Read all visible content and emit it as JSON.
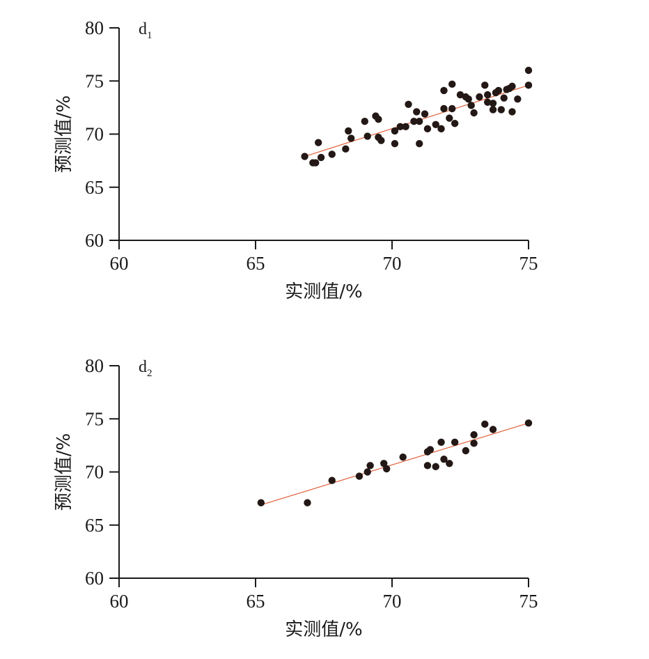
{
  "chart_data": [
    {
      "type": "scatter",
      "panel_label": "d",
      "panel_subscript": "1",
      "xlabel": "实测值/%",
      "ylabel": "预测值/%",
      "xlim": [
        60,
        75
      ],
      "ylim": [
        60,
        80
      ],
      "xticks": [
        60,
        65,
        70,
        75
      ],
      "yticks": [
        60,
        65,
        70,
        75,
        80
      ],
      "fit_line": {
        "x": [
          66.8,
          75.0
        ],
        "y": [
          67.9,
          74.6
        ]
      },
      "points": [
        [
          66.8,
          67.9
        ],
        [
          67.1,
          67.3
        ],
        [
          67.2,
          67.3
        ],
        [
          67.3,
          69.2
        ],
        [
          67.4,
          67.8
        ],
        [
          67.8,
          68.1
        ],
        [
          68.3,
          68.6
        ],
        [
          68.4,
          70.3
        ],
        [
          68.5,
          69.6
        ],
        [
          69.0,
          71.2
        ],
        [
          69.1,
          69.8
        ],
        [
          69.4,
          71.7
        ],
        [
          69.5,
          69.7
        ],
        [
          69.5,
          71.4
        ],
        [
          69.6,
          69.4
        ],
        [
          70.1,
          69.1
        ],
        [
          70.1,
          70.3
        ],
        [
          70.3,
          70.7
        ],
        [
          70.5,
          70.7
        ],
        [
          70.6,
          72.8
        ],
        [
          70.8,
          71.2
        ],
        [
          70.9,
          72.1
        ],
        [
          71.0,
          69.1
        ],
        [
          71.0,
          71.2
        ],
        [
          71.2,
          71.9
        ],
        [
          71.3,
          70.5
        ],
        [
          71.6,
          70.9
        ],
        [
          71.8,
          70.5
        ],
        [
          71.9,
          72.4
        ],
        [
          71.9,
          74.1
        ],
        [
          72.1,
          71.5
        ],
        [
          72.2,
          74.7
        ],
        [
          72.2,
          72.4
        ],
        [
          72.3,
          71.0
        ],
        [
          72.5,
          73.7
        ],
        [
          72.7,
          73.5
        ],
        [
          72.8,
          73.3
        ],
        [
          72.9,
          72.7
        ],
        [
          73.0,
          72.0
        ],
        [
          73.2,
          73.5
        ],
        [
          73.4,
          74.6
        ],
        [
          73.5,
          73.7
        ],
        [
          73.5,
          73.0
        ],
        [
          73.7,
          72.9
        ],
        [
          73.7,
          72.3
        ],
        [
          73.8,
          73.9
        ],
        [
          73.9,
          74.1
        ],
        [
          74.0,
          72.3
        ],
        [
          74.1,
          73.4
        ],
        [
          74.2,
          74.2
        ],
        [
          74.3,
          74.3
        ],
        [
          74.4,
          72.1
        ],
        [
          74.4,
          74.5
        ],
        [
          74.6,
          73.3
        ],
        [
          75.0,
          76.0
        ],
        [
          75.0,
          74.6
        ]
      ]
    },
    {
      "type": "scatter",
      "panel_label": "d",
      "panel_subscript": "2",
      "xlabel": "实测值/%",
      "ylabel": "预测值/%",
      "xlim": [
        60,
        75
      ],
      "ylim": [
        60,
        80
      ],
      "xticks": [
        60,
        65,
        70,
        75
      ],
      "yticks": [
        60,
        65,
        70,
        75,
        80
      ],
      "fit_line": {
        "x": [
          65.2,
          75.0
        ],
        "y": [
          66.9,
          74.6
        ]
      },
      "points": [
        [
          65.2,
          67.1
        ],
        [
          66.9,
          67.1
        ],
        [
          67.8,
          69.2
        ],
        [
          68.8,
          69.6
        ],
        [
          69.1,
          70.0
        ],
        [
          69.2,
          70.6
        ],
        [
          69.7,
          70.8
        ],
        [
          69.8,
          70.3
        ],
        [
          70.4,
          71.4
        ],
        [
          71.3,
          70.6
        ],
        [
          71.3,
          71.9
        ],
        [
          71.4,
          72.1
        ],
        [
          71.6,
          70.5
        ],
        [
          71.8,
          72.8
        ],
        [
          71.9,
          71.2
        ],
        [
          72.1,
          70.8
        ],
        [
          72.3,
          72.8
        ],
        [
          72.7,
          72.0
        ],
        [
          73.0,
          73.5
        ],
        [
          73.0,
          72.7
        ],
        [
          73.4,
          74.5
        ],
        [
          73.7,
          74.0
        ],
        [
          75.0,
          74.6
        ]
      ]
    }
  ]
}
